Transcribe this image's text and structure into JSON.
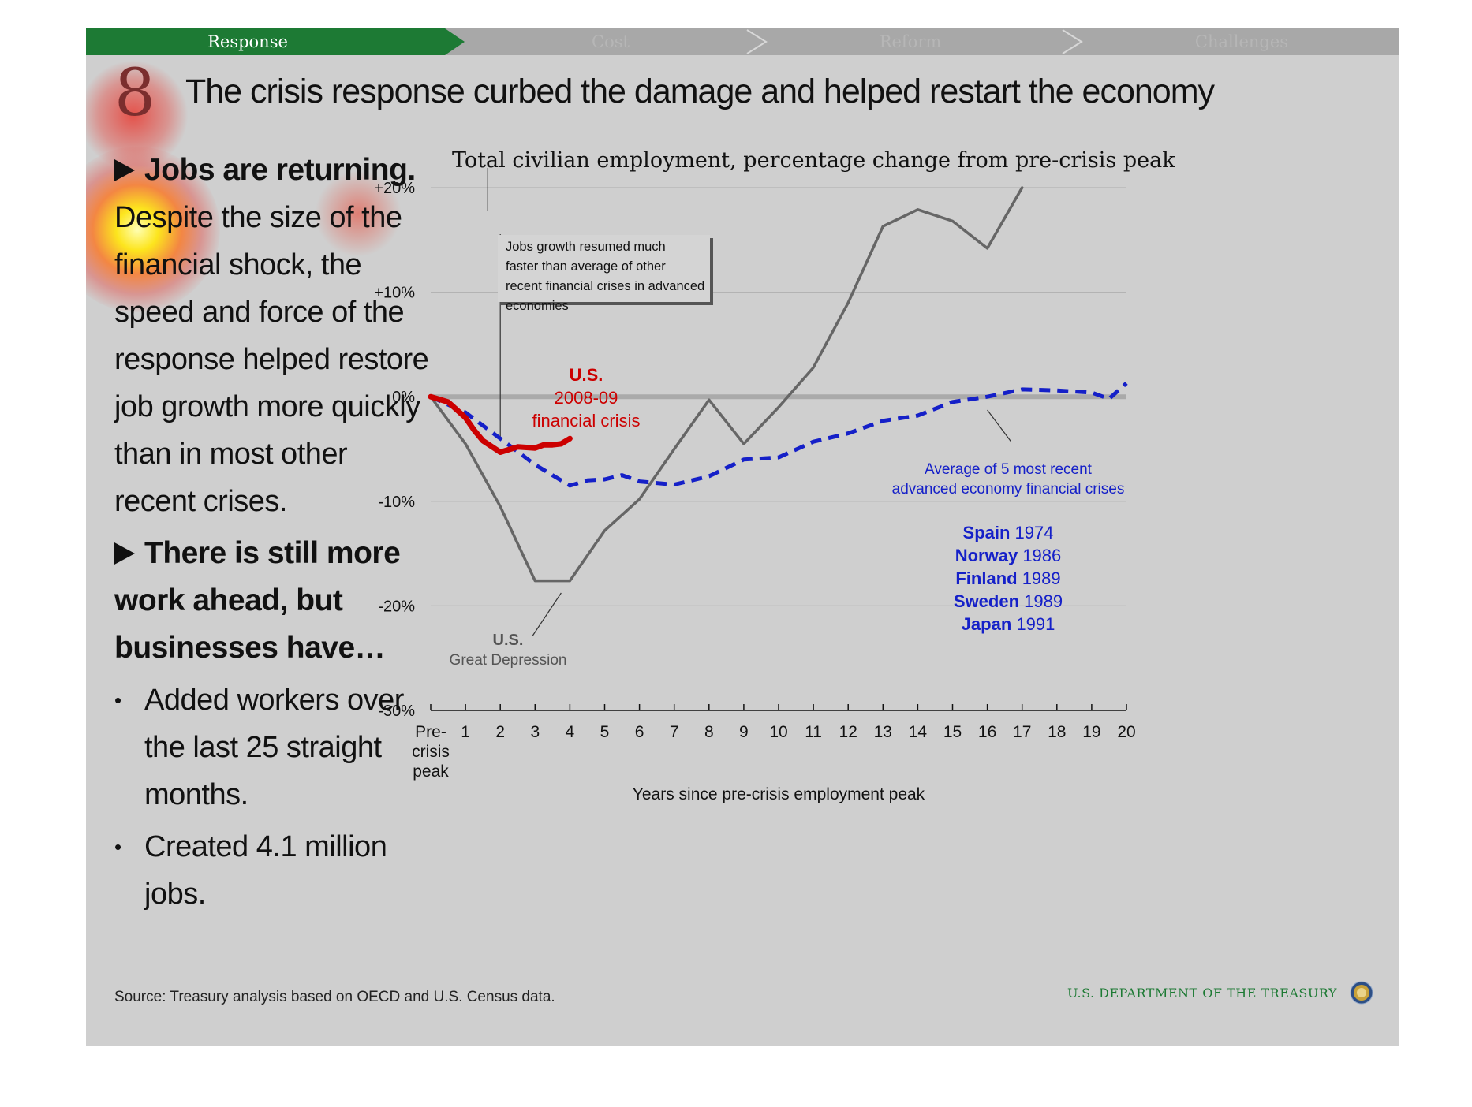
{
  "nav": {
    "items": [
      {
        "label": "Response",
        "active": true
      },
      {
        "label": "Cost",
        "active": false
      },
      {
        "label": "Reform",
        "active": false
      },
      {
        "label": "Challenges",
        "active": false
      }
    ]
  },
  "slide": {
    "number": "8",
    "title": "The crisis response curbed the damage and helped restart the economy"
  },
  "left": {
    "heading1": "Jobs are returning.",
    "para1": "Despite the size of the financial shock, the speed and force of the response helped restore job growth more quickly than in most other recent crises.",
    "heading2": "There is still more work ahead, but businesses have…",
    "bullets": [
      "Added workers over the last 25 straight months.",
      "Created 4.1 million jobs."
    ]
  },
  "chart_data": {
    "type": "line",
    "title": "Total civilian employment, percentage change from pre-crisis peak",
    "xlabel": "Years since pre-crisis employment peak",
    "ylabel": "",
    "xlim": [
      0,
      20
    ],
    "ylim": [
      -30,
      20
    ],
    "yticks": [
      "+20%",
      "+10%",
      "0%",
      "-10%",
      "-20%",
      "-30%"
    ],
    "ytick_values": [
      20,
      10,
      0,
      -10,
      -20,
      -30
    ],
    "xticks": [
      "Pre-crisis peak",
      "1",
      "2",
      "3",
      "4",
      "5",
      "6",
      "7",
      "8",
      "9",
      "10",
      "11",
      "12",
      "13",
      "14",
      "15",
      "16",
      "17",
      "18",
      "19",
      "20"
    ],
    "grid": true,
    "series": [
      {
        "name": "U.S. Great Depression",
        "color": "#666666",
        "style": "solid",
        "points": [
          [
            0,
            0
          ],
          [
            1,
            -4.5
          ],
          [
            2,
            -10.5
          ],
          [
            3,
            -17.6
          ],
          [
            4,
            -17.6
          ],
          [
            5,
            -12.8
          ],
          [
            6,
            -9.8
          ],
          [
            7,
            -5
          ],
          [
            8,
            -0.3
          ],
          [
            9,
            -4.5
          ],
          [
            10,
            -1
          ],
          [
            11,
            2.8
          ],
          [
            12,
            9
          ],
          [
            13,
            16.3
          ],
          [
            14,
            17.9
          ],
          [
            15,
            16.8
          ],
          [
            16,
            14.2
          ],
          [
            17,
            20
          ]
        ]
      },
      {
        "name": "Average of 5 most recent advanced economy financial crises",
        "color": "#1520c8",
        "style": "dashed",
        "points": [
          [
            0,
            0
          ],
          [
            1,
            -1.5
          ],
          [
            2,
            -4
          ],
          [
            3,
            -6.5
          ],
          [
            4,
            -8.5
          ],
          [
            4.5,
            -8
          ],
          [
            5,
            -7.9
          ],
          [
            5.5,
            -7.5
          ],
          [
            6,
            -8.1
          ],
          [
            7,
            -8.4
          ],
          [
            8,
            -7.6
          ],
          [
            9,
            -6
          ],
          [
            10,
            -5.8
          ],
          [
            11,
            -4.3
          ],
          [
            12,
            -3.5
          ],
          [
            13,
            -2.3
          ],
          [
            14,
            -1.8
          ],
          [
            15,
            -0.5
          ],
          [
            16,
            0
          ],
          [
            17,
            0.7
          ],
          [
            18,
            0.6
          ],
          [
            19,
            0.4
          ],
          [
            19.5,
            -0.2
          ],
          [
            20,
            1.3
          ]
        ]
      },
      {
        "name": "U.S. 2008-09 financial crisis",
        "color": "#cc0000",
        "style": "solid",
        "points": [
          [
            0,
            0
          ],
          [
            0.5,
            -0.5
          ],
          [
            1,
            -2
          ],
          [
            1.25,
            -3.2
          ],
          [
            1.5,
            -4.2
          ],
          [
            2,
            -5.3
          ],
          [
            2.5,
            -4.8
          ],
          [
            3,
            -4.9
          ],
          [
            3.25,
            -4.6
          ],
          [
            3.5,
            -4.6
          ],
          [
            3.75,
            -4.5
          ],
          [
            4,
            -4
          ]
        ]
      }
    ],
    "annotations": {
      "callout": "Jobs growth resumed much faster than average of other recent financial crises in advanced economies",
      "us_bold": "U.S.",
      "us_years": "2008-09",
      "us_crisis": "financial crisis",
      "gd_bold": "U.S.",
      "gd_label": "Great Depression",
      "avg_label1": "Average of 5 most recent",
      "avg_label2": "advanced economy financial crises",
      "countries": [
        {
          "name": "Spain",
          "year": "1974"
        },
        {
          "name": "Norway",
          "year": "1986"
        },
        {
          "name": "Finland",
          "year": "1989"
        },
        {
          "name": "Sweden",
          "year": "1989"
        },
        {
          "name": "Japan",
          "year": "1991"
        }
      ]
    }
  },
  "footer": {
    "source": "Source: Treasury analysis based on OECD and U.S. Census data.",
    "org": "U.S. DEPARTMENT OF THE TREASURY"
  },
  "colors": {
    "nav_active": "#1d7a34",
    "red": "#cc0000",
    "blue": "#1520c8",
    "depression": "#666666"
  }
}
